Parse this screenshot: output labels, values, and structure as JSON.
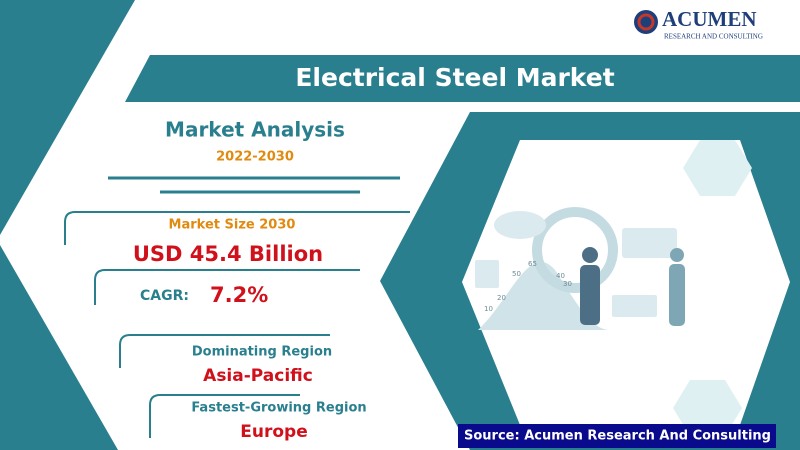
{
  "logo": {
    "name": "ACUMEN",
    "tagline": "RESEARCH AND CONSULTING"
  },
  "header": {
    "title": "Electrical Steel Market"
  },
  "analysis": {
    "title": "Market Analysis",
    "period": "2022-2030"
  },
  "stats": [
    {
      "label": "Market Size 2030",
      "value": "USD 45.4 Billion"
    },
    {
      "label": "CAGR:",
      "value": "7.2%"
    },
    {
      "label": "Dominating Region",
      "value": "Asia-Pacific"
    },
    {
      "label": "Fastest-Growing Region",
      "value": "Europe"
    }
  ],
  "illustration": {
    "labels": [
      "65",
      "50",
      "40",
      "30",
      "20",
      "10"
    ]
  },
  "source": "Source: Acumen Research And Consulting"
}
